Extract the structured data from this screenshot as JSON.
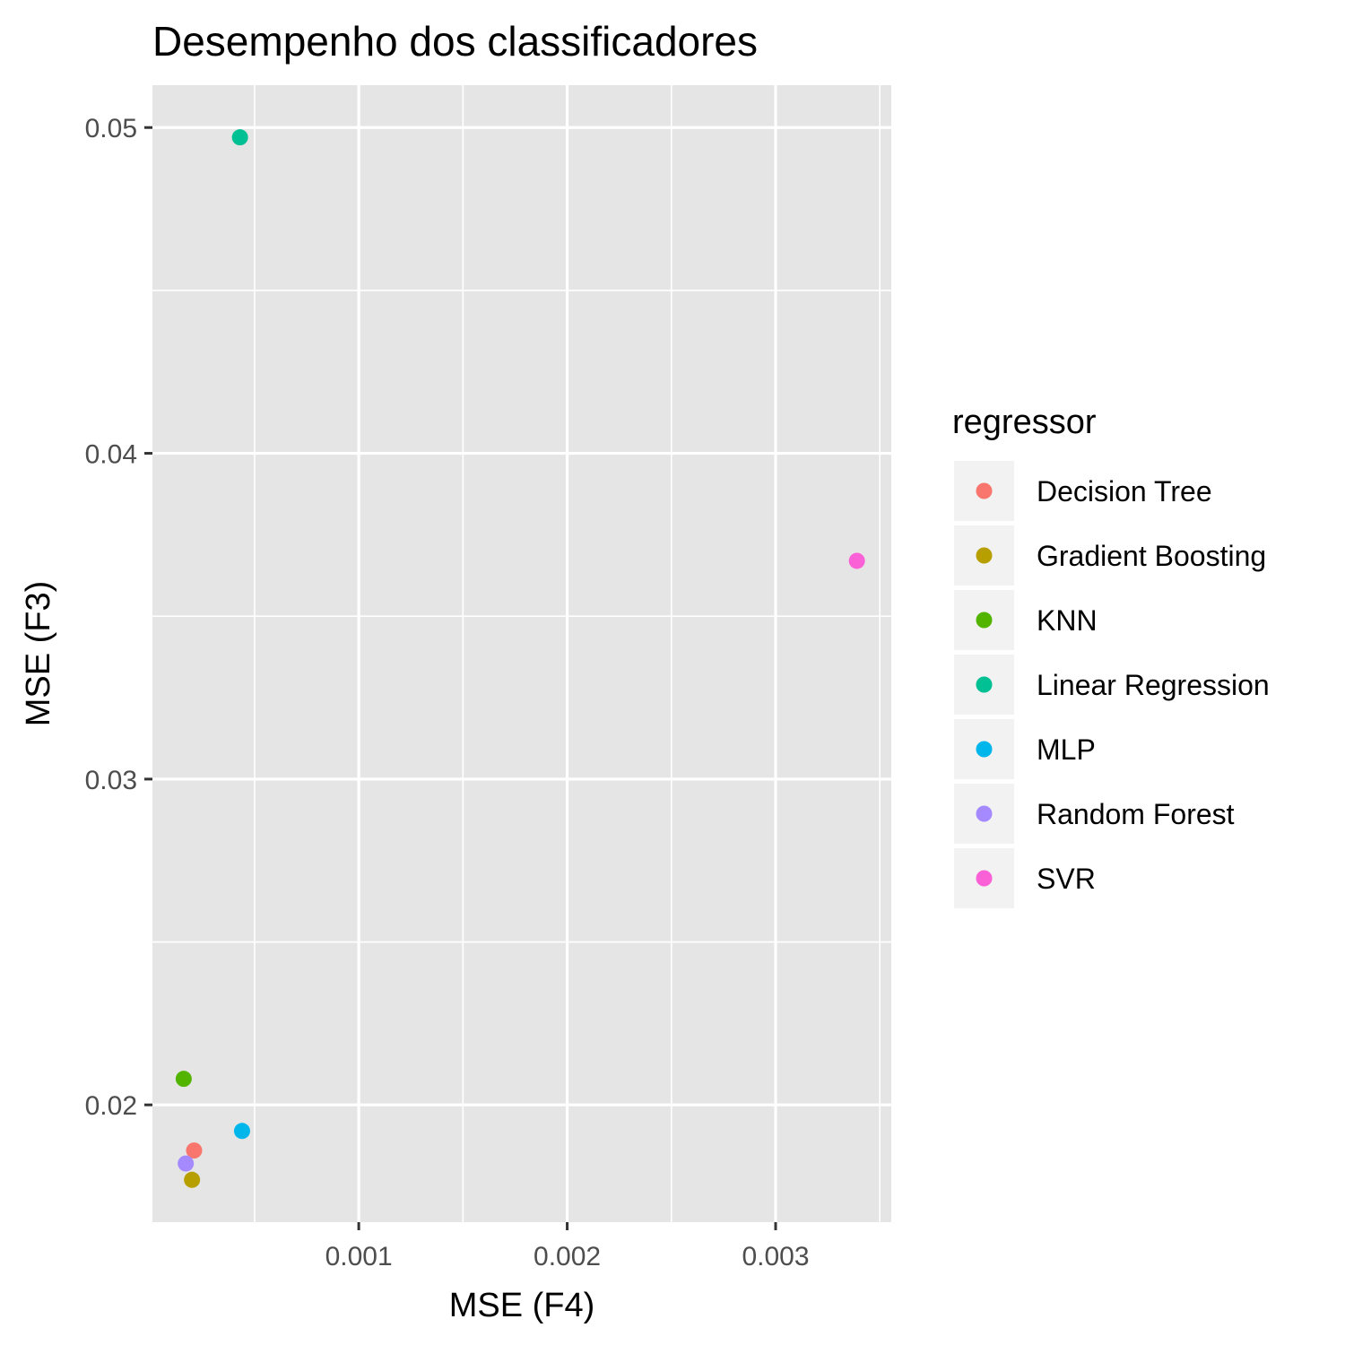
{
  "chart_data": {
    "type": "scatter",
    "title": "Desempenho dos classificadores",
    "xlabel": "MSE (F4)",
    "ylabel": "MSE (F3)",
    "xlim": [
      1e-05,
      0.003555
    ],
    "ylim": [
      0.0164,
      0.0513
    ],
    "xticks": [
      {
        "value": 0.001,
        "label": "0.001"
      },
      {
        "value": 0.002,
        "label": "0.002"
      },
      {
        "value": 0.003,
        "label": "0.003"
      }
    ],
    "xminor": [
      0.0005,
      0.0015,
      0.0025,
      0.0035
    ],
    "yticks": [
      {
        "value": 0.02,
        "label": "0.02"
      },
      {
        "value": 0.03,
        "label": "0.03"
      },
      {
        "value": 0.04,
        "label": "0.04"
      },
      {
        "value": 0.05,
        "label": "0.05"
      }
    ],
    "yminor": [
      0.025,
      0.035,
      0.045
    ],
    "grid": true,
    "legend": {
      "title": "regressor",
      "placement": "right"
    },
    "series": [
      {
        "name": "Decision Tree",
        "color": "#F8766D",
        "points": [
          {
            "x": 0.00021,
            "y": 0.0186
          }
        ]
      },
      {
        "name": "Gradient Boosting",
        "color": "#B79F00",
        "points": [
          {
            "x": 0.0002,
            "y": 0.0177
          }
        ]
      },
      {
        "name": "KNN",
        "color": "#53B400",
        "points": [
          {
            "x": 0.00016,
            "y": 0.0208
          }
        ]
      },
      {
        "name": "Linear Regression",
        "color": "#00C094",
        "points": [
          {
            "x": 0.00043,
            "y": 0.0497
          }
        ]
      },
      {
        "name": "MLP",
        "color": "#00B6EB",
        "points": [
          {
            "x": 0.00044,
            "y": 0.0192
          }
        ]
      },
      {
        "name": "Random Forest",
        "color": "#A58AFF",
        "points": [
          {
            "x": 0.00017,
            "y": 0.0182
          }
        ]
      },
      {
        "name": "SVR",
        "color": "#FB61D7",
        "points": [
          {
            "x": 0.00339,
            "y": 0.0367
          }
        ]
      }
    ]
  }
}
